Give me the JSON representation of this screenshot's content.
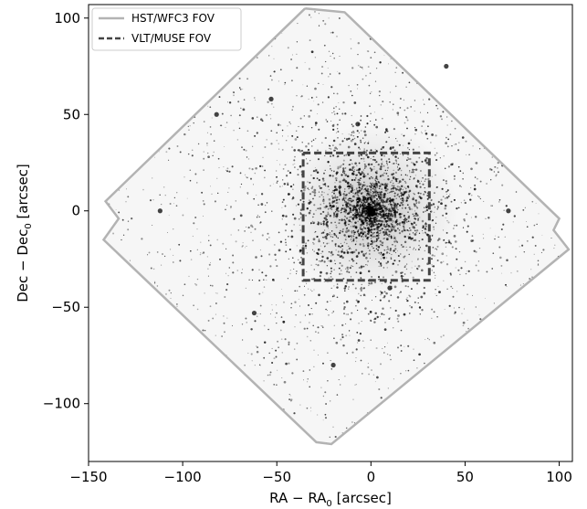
{
  "chart_data": {
    "type": "scatter",
    "xlabel_main": "RA − RA",
    "xlabel_sub": "0",
    "xlabel_unit": " [arcsec]",
    "ylabel_main": "Dec − Dec",
    "ylabel_sub": "0",
    "ylabel_unit": " [arcsec]",
    "xlim": [
      -150,
      107
    ],
    "ylim": [
      -130,
      107
    ],
    "x_ticks": [
      -150,
      -100,
      -50,
      0,
      50,
      100
    ],
    "x_tick_labels": [
      "−150",
      "−100",
      "−50",
      "0",
      "50",
      "100"
    ],
    "y_ticks": [
      -100,
      -50,
      0,
      50,
      100
    ],
    "y_tick_labels": [
      "−100",
      "−50",
      "0",
      "50",
      "100"
    ],
    "grid": false,
    "legend_position": "top-left",
    "series": [
      {
        "name": "HST/WFC3 FOV",
        "style": "solid",
        "color": "#b3b3b3",
        "points": [
          [
            -35,
            105
          ],
          [
            -14,
            103
          ],
          [
            100,
            -4
          ],
          [
            97,
            -10
          ],
          [
            105,
            -20
          ],
          [
            -21,
            -121
          ],
          [
            -29,
            -120
          ],
          [
            -142,
            -15
          ],
          [
            -134,
            -4
          ],
          [
            -141,
            5
          ],
          [
            -35,
            105
          ]
        ]
      },
      {
        "name": "VLT/MUSE FOV",
        "style": "dashed",
        "color": "#444444",
        "points": [
          [
            -36,
            30
          ],
          [
            31,
            30
          ],
          [
            31,
            -36
          ],
          [
            -36,
            -36
          ],
          [
            -36,
            30
          ]
        ]
      }
    ],
    "image_background": {
      "description_colormap": "grayscale inverted star field",
      "cluster_center": [
        0,
        0
      ]
    }
  }
}
